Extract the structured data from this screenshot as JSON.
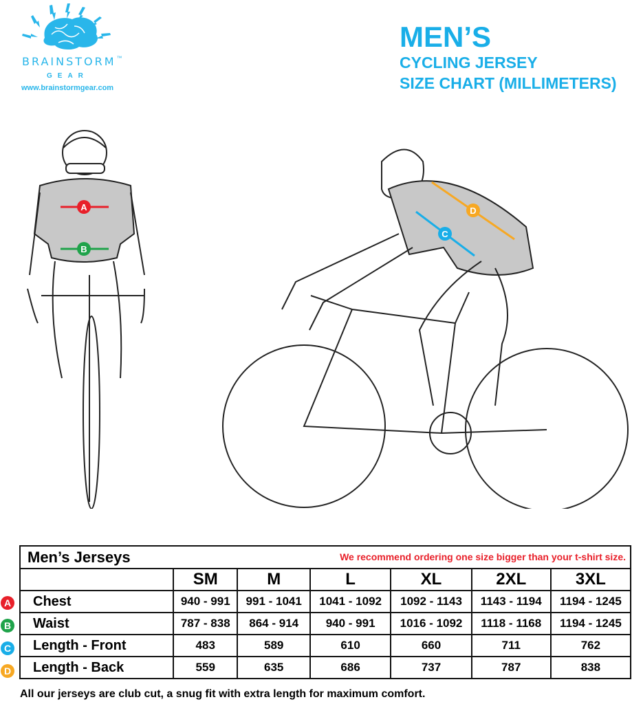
{
  "logo": {
    "brand": "BRAINSTORM",
    "tm": "™",
    "sub": "GEAR",
    "url": "www.brainstormgear.com"
  },
  "title": {
    "line1": "MEN’S",
    "line2": "CYCLING JERSEY",
    "line3": "SIZE CHART (MILLIMETERS)"
  },
  "markers": [
    {
      "letter": "A",
      "color": "#e8202a"
    },
    {
      "letter": "B",
      "color": "#1fa34a"
    },
    {
      "letter": "C",
      "color": "#19aee8"
    },
    {
      "letter": "D",
      "color": "#f7a823"
    }
  ],
  "table": {
    "title": "Men’s Jerseys",
    "note": "We recommend ordering one size bigger than your t-shirt size.",
    "sizes": [
      "SM",
      "M",
      "L",
      "XL",
      "2XL",
      "3XL"
    ],
    "rows": [
      {
        "marker": "A",
        "label": "Chest",
        "values": [
          "940 - 991",
          "991 - 1041",
          "1041 - 1092",
          "1092 - 1143",
          "1143 - 1194",
          "1194 - 1245"
        ]
      },
      {
        "marker": "B",
        "label": "Waist",
        "values": [
          "787 - 838",
          "864 - 914",
          "940 - 991",
          "1016 - 1092",
          "1118 - 1168",
          "1194 - 1245"
        ]
      },
      {
        "marker": "C",
        "label": "Length - Front",
        "values": [
          "483",
          "589",
          "610",
          "660",
          "711",
          "762"
        ]
      },
      {
        "marker": "D",
        "label": "Length - Back",
        "values": [
          "559",
          "635",
          "686",
          "737",
          "787",
          "838"
        ]
      }
    ]
  },
  "footer": "All our jerseys are club cut, a snug fit with extra length for maximum comfort."
}
